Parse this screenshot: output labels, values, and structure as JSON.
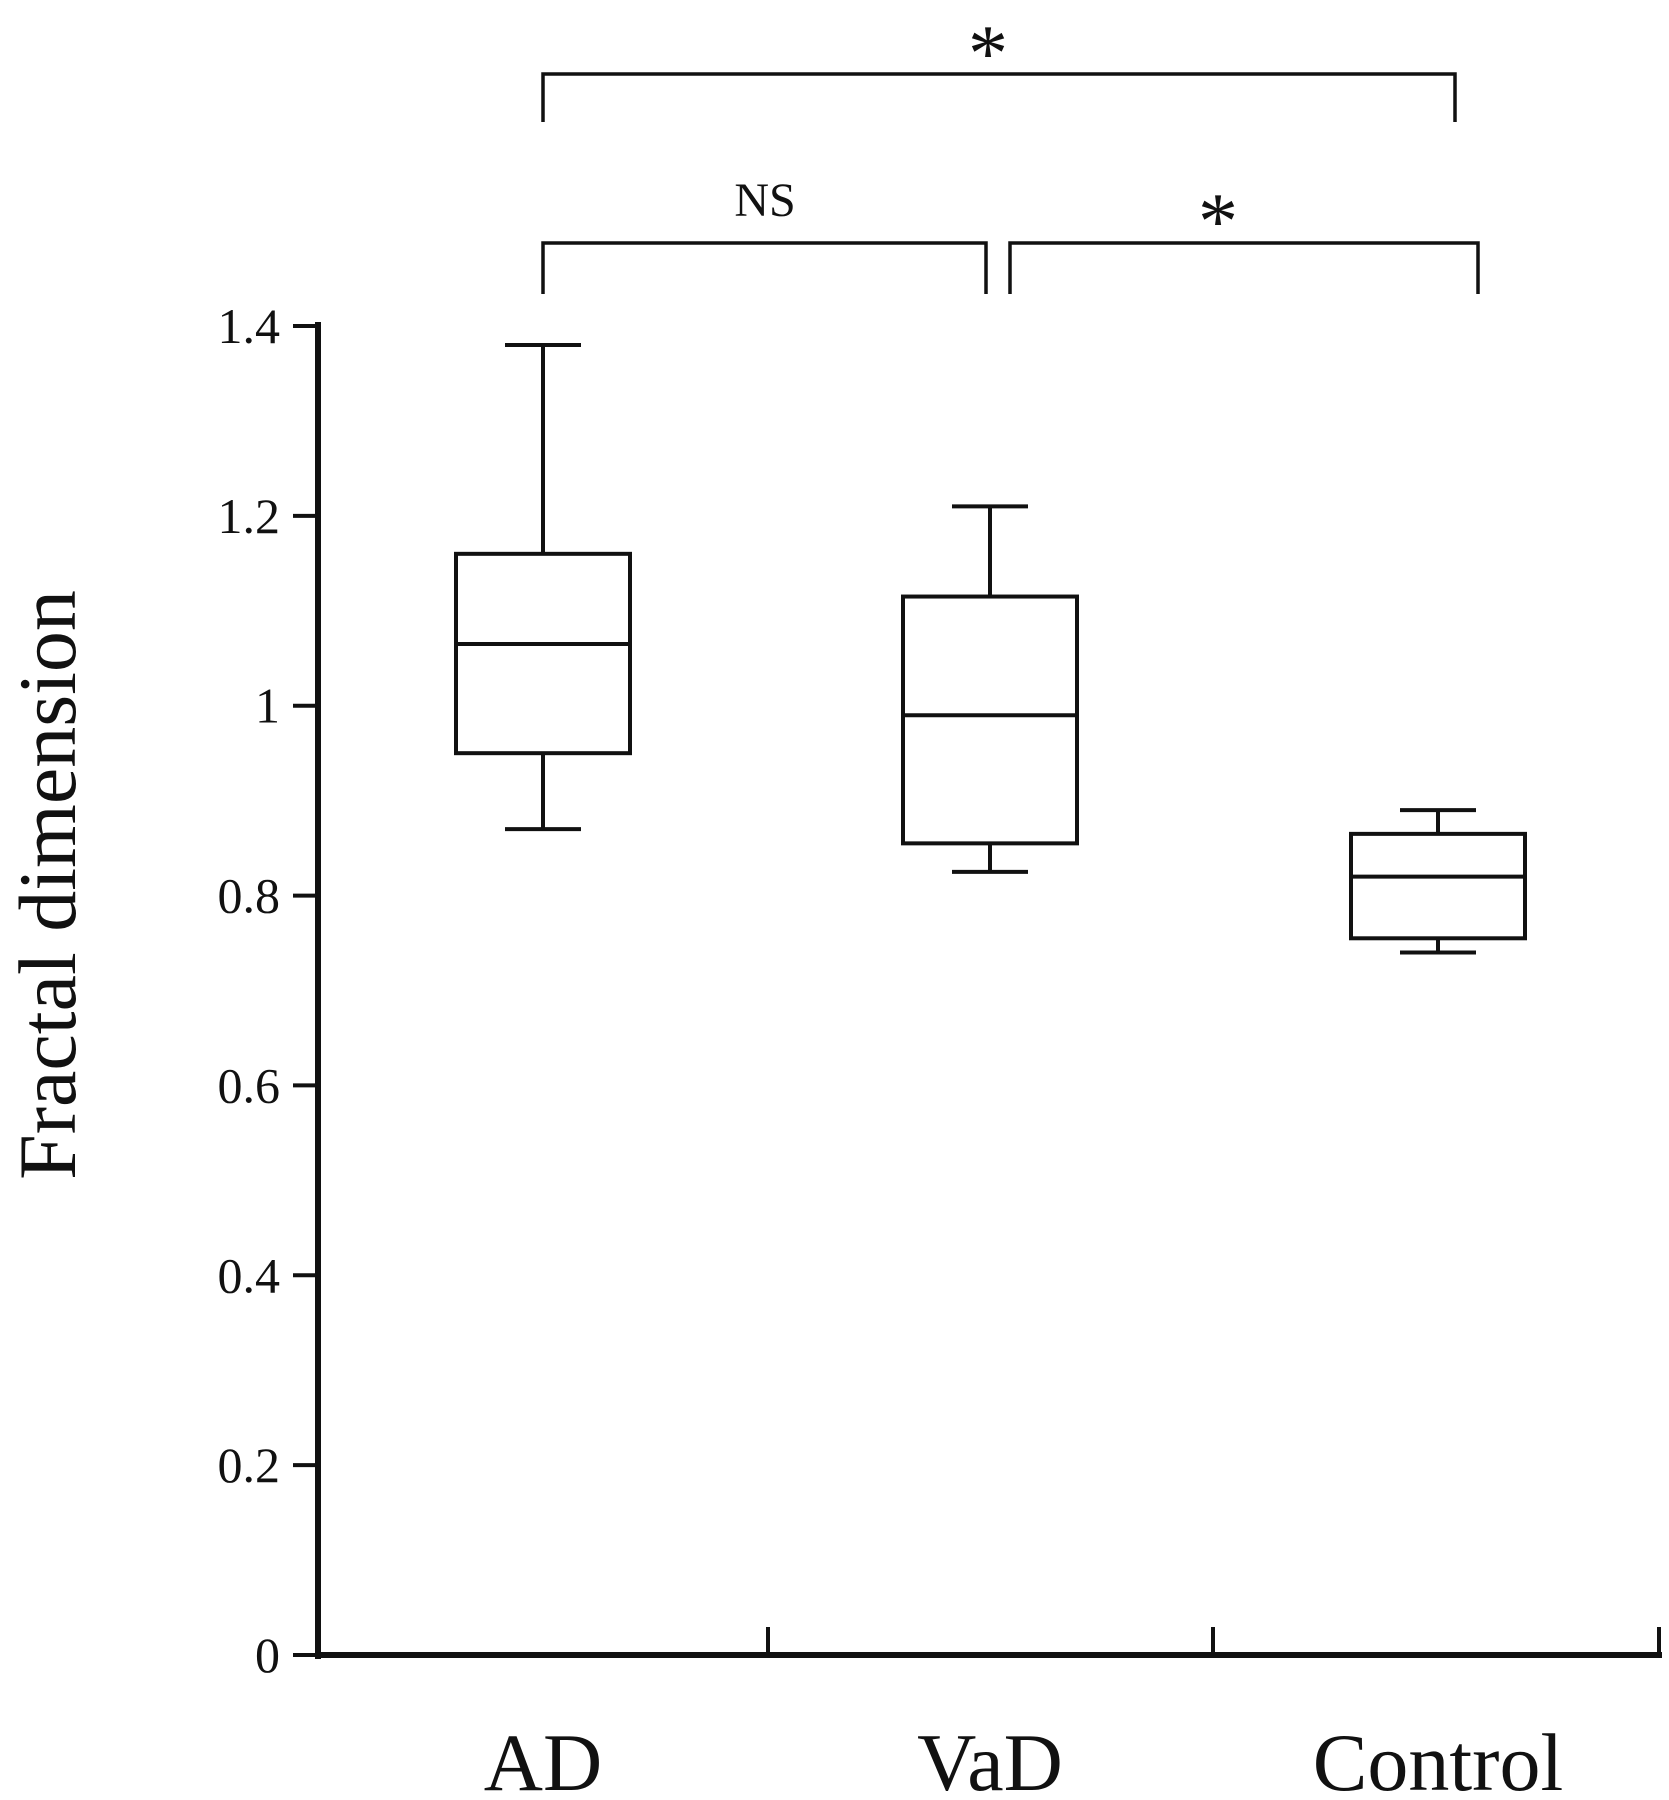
{
  "chart_data": {
    "type": "box",
    "title": "",
    "xlabel": "",
    "ylabel": "Fractal dimension",
    "ylim": [
      0,
      1.4
    ],
    "yticks": [
      0,
      0.2,
      0.4,
      0.6,
      0.8,
      1,
      1.2,
      1.4
    ],
    "ytick_labels": [
      "0",
      "0.2",
      "0.4",
      "0.6",
      "0.8",
      "1",
      "1.2",
      "1.4"
    ],
    "categories": [
      "AD",
      "VaD",
      "Control"
    ],
    "boxes": [
      {
        "category": "AD",
        "min": 0.87,
        "q1": 0.95,
        "median": 1.065,
        "q3": 1.16,
        "max": 1.38
      },
      {
        "category": "VaD",
        "min": 0.825,
        "q1": 0.855,
        "median": 0.99,
        "q3": 1.115,
        "max": 1.21
      },
      {
        "category": "Control",
        "min": 0.74,
        "q1": 0.755,
        "median": 0.82,
        "q3": 0.865,
        "max": 0.89
      }
    ],
    "significance": [
      {
        "from": "AD",
        "to": "VaD",
        "label": "NS"
      },
      {
        "from": "VaD",
        "to": "Control",
        "label": "*"
      },
      {
        "from": "AD",
        "to": "Control",
        "label": "*"
      }
    ],
    "grid": false,
    "legend": "none",
    "colors": {
      "stroke": "#111111",
      "fill": "#ffffff"
    }
  }
}
